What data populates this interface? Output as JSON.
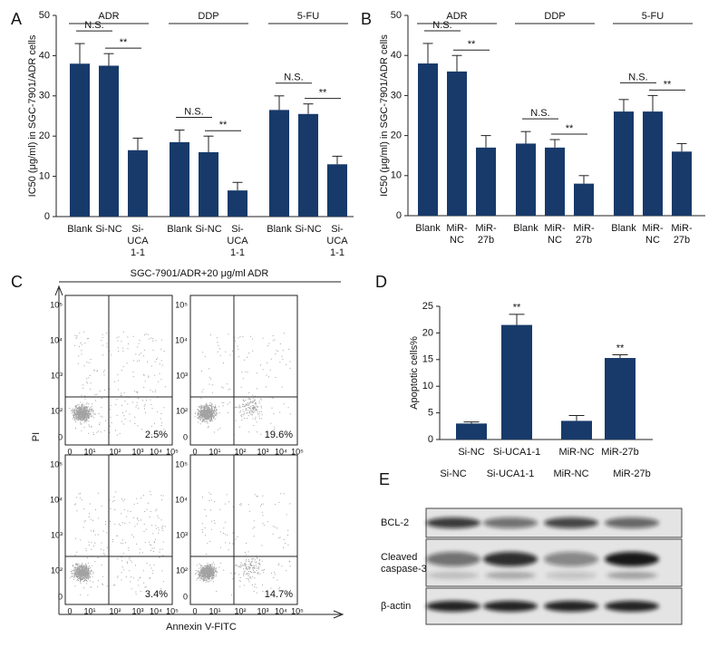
{
  "chart_data": [
    {
      "type": "bar",
      "panel": "A",
      "ylabel": "IC50 (μg/ml) in SGC-7901/ADR cells",
      "color": "#173a6a",
      "ylim": [
        0,
        50
      ],
      "yticks": [
        0,
        10,
        20,
        30,
        40,
        50
      ],
      "groups": [
        {
          "name": "ADR",
          "categories": [
            "Blank",
            "Si-NC",
            "Si-\nUCA\n1-1"
          ],
          "values": [
            38,
            37.5,
            16.5
          ],
          "errors": [
            5,
            3,
            3
          ],
          "comparisons": [
            "N.S.",
            "**"
          ]
        },
        {
          "name": "DDP",
          "categories": [
            "Blank",
            "Si-NC",
            "Si-\nUCA\n1-1"
          ],
          "values": [
            18.5,
            16,
            6.5
          ],
          "errors": [
            3,
            4,
            2
          ],
          "comparisons": [
            "N.S.",
            "**"
          ]
        },
        {
          "name": "5-FU",
          "categories": [
            "Blank",
            "Si-NC",
            "Si-\nUCA\n1-1"
          ],
          "values": [
            26.5,
            25.5,
            13
          ],
          "errors": [
            3.5,
            2.5,
            2
          ],
          "comparisons": [
            "N.S.",
            "**"
          ]
        }
      ]
    },
    {
      "type": "bar",
      "panel": "B",
      "ylabel": "IC50 (μg/ml) in SGC-7901/ADR cells",
      "color": "#173a6a",
      "ylim": [
        0,
        50
      ],
      "yticks": [
        0,
        10,
        20,
        30,
        40,
        50
      ],
      "groups": [
        {
          "name": "ADR",
          "categories": [
            "Blank",
            "MiR-\nNC",
            "MiR-\n27b"
          ],
          "values": [
            38,
            36,
            17
          ],
          "errors": [
            5,
            4,
            3
          ],
          "comparisons": [
            "N.S.",
            "**"
          ]
        },
        {
          "name": "DDP",
          "categories": [
            "Blank",
            "MiR-\nNC",
            "MiR-\n27b"
          ],
          "values": [
            18,
            17,
            8
          ],
          "errors": [
            3,
            2,
            2
          ],
          "comparisons": [
            "N.S.",
            "**"
          ]
        },
        {
          "name": "5-FU",
          "categories": [
            "Blank",
            "MiR-\nNC",
            "MiR-\n27b"
          ],
          "values": [
            26,
            26,
            16
          ],
          "errors": [
            3,
            4,
            2
          ],
          "comparisons": [
            "N.S.",
            "**"
          ]
        }
      ]
    },
    {
      "type": "bar",
      "panel": "D",
      "ylabel": "Apoptotic cells%",
      "color": "#173a6a",
      "ylim": [
        0,
        25
      ],
      "yticks": [
        0,
        5,
        10,
        15,
        20,
        25
      ],
      "categories": [
        "Si-NC",
        "Si-UCA1-1",
        "MiR-NC",
        "MiR-27b"
      ],
      "values": [
        3,
        21.5,
        3.5,
        15.3
      ],
      "errors": [
        0.3,
        2,
        1,
        0.6
      ],
      "markers": [
        null,
        "**",
        null,
        "**"
      ]
    }
  ],
  "flow": {
    "panel": "C",
    "title": "SGC-7901/ADR+20 μg/ml ADR",
    "ylabel": "PI",
    "xlabel": "Annexin V-FITC",
    "yticks": [
      "0",
      "10²",
      "10³",
      "10⁴",
      "10⁵"
    ],
    "xticks": [
      "0",
      "10¹",
      "10²",
      "10³",
      "10⁴",
      "10⁵"
    ],
    "plots": [
      {
        "percent": "2.5%"
      },
      {
        "percent": "19.6%"
      },
      {
        "percent": "3.4%"
      },
      {
        "percent": "14.7%"
      }
    ]
  },
  "blot": {
    "panel": "E",
    "columns": [
      "Si-NC",
      "Si-UCA1-1",
      "MiR-NC",
      "MiR-27b"
    ],
    "rows": [
      "BCL-2",
      "Cleaved\ncaspase-3",
      "β-actin"
    ]
  }
}
